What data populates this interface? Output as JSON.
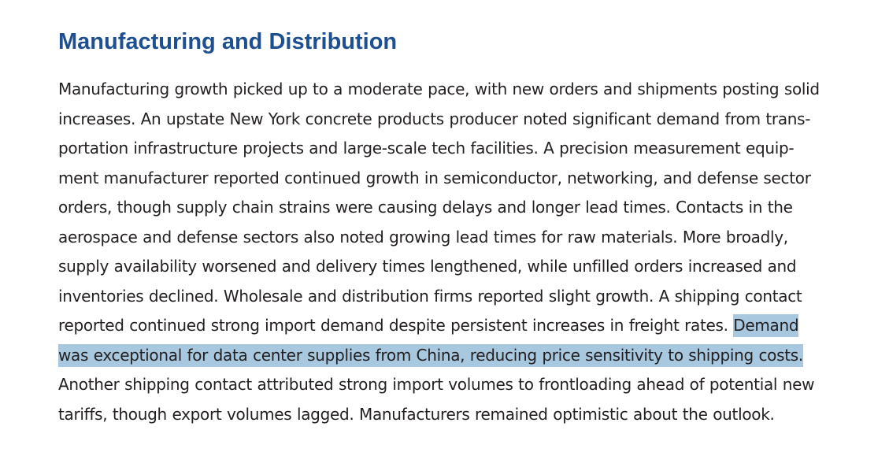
{
  "section": {
    "title": "Manufacturing and Distribution"
  },
  "paragraph": {
    "line1": "Manufacturing growth picked up to a moderate pace, with new orders and shipments posting solid",
    "line2": "increases. An upstate New York concrete products producer noted significant demand from trans-",
    "line3": "portation infrastructure projects and large-scale tech facilities. A precision measurement equip-",
    "line4": "ment manufacturer reported continued growth in semiconductor, networking, and defense sector",
    "line5": "orders, though supply chain strains were causing delays and longer lead times. Contacts in the",
    "line6": "aerospace and defense sectors also noted growing lead times for raw materials. More broadly,",
    "line7": "supply availability worsened and delivery times lengthened, while unfilled orders increased and",
    "line8": "inventories declined. Wholesale and distribution firms reported slight growth. A shipping contact",
    "line9_plain": "reported continued strong import demand despite persistent increases in freight rates. ",
    "line9_highlight": "Demand",
    "line10_highlight": "was exceptional for data center supplies from China, reducing price sensitivity to shipping costs.",
    "line11": "Another shipping contact attributed strong import volumes to frontloading ahead of potential new",
    "line12": "tariffs, though export volumes lagged. Manufacturers remained optimistic about the outlook."
  },
  "colors": {
    "heading": "#1d4f91",
    "text": "#231f20",
    "highlight": "#a8c8e0"
  }
}
